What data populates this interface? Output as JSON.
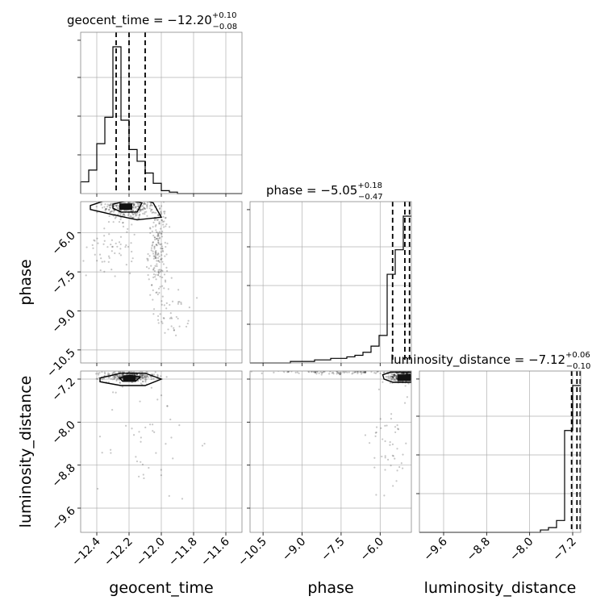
{
  "chart_data": {
    "type": "corner",
    "parameters": [
      "geocent_time",
      "phase",
      "luminosity_distance"
    ],
    "axis_labels": {
      "geocent_time": "geocent_time",
      "phase": "phase",
      "luminosity_distance": "luminosity_distance"
    },
    "ranges": {
      "geocent_time": [
        -12.5,
        -11.5
      ],
      "phase": [
        -11.0,
        -4.8
      ],
      "luminosity_distance": [
        -10.05,
        -7.05
      ]
    },
    "ticks": {
      "geocent_time": [
        -12.4,
        -12.2,
        -12.0,
        -11.8,
        -11.6
      ],
      "phase": [
        -10.5,
        -9.0,
        -7.5,
        -6.0
      ],
      "luminosity_distance": [
        -9.6,
        -8.8,
        -8.0,
        -7.2
      ]
    },
    "tick_labels": {
      "geocent_time": [
        "−12.4",
        "−12.2",
        "−12.0",
        "−11.8",
        "−11.6"
      ],
      "phase": [
        "−10.5",
        "−9.0",
        "−7.5",
        "−6.0"
      ],
      "luminosity_distance": [
        "−9.6",
        "−8.8",
        "−8.0",
        "−7.2"
      ]
    },
    "grid": true,
    "titles": [
      {
        "name": "geocent_time",
        "median": "−12.20",
        "plus": "+0.10",
        "minus": "−0.08"
      },
      {
        "name": "phase",
        "median": "−5.05",
        "plus": "+0.18",
        "minus": "−0.47"
      },
      {
        "name": "luminosity_distance",
        "median": "−7.12",
        "plus": "+0.06",
        "minus": "−0.10"
      }
    ],
    "quantiles": {
      "geocent_time": [
        -12.28,
        -12.2,
        -12.1
      ],
      "phase": [
        -5.52,
        -5.05,
        -4.87
      ],
      "luminosity_distance": [
        -7.22,
        -7.12,
        -7.06
      ]
    },
    "histograms": {
      "geocent_time": {
        "edges": [
          -12.5,
          -12.45,
          -12.4,
          -12.35,
          -12.3,
          -12.25,
          -12.2,
          -12.15,
          -12.1,
          -12.05,
          -12.0,
          -11.95,
          -11.9,
          -11.85,
          -11.8,
          -11.75,
          -11.7,
          -11.65,
          -11.6,
          -11.55,
          -11.5
        ],
        "counts": [
          0.08,
          0.16,
          0.34,
          0.52,
          1.0,
          0.5,
          0.3,
          0.22,
          0.14,
          0.07,
          0.02,
          0.01,
          0,
          0,
          0,
          0,
          0,
          0,
          0,
          0
        ]
      },
      "phase": {
        "edges": [
          -11.0,
          -10.69,
          -10.38,
          -10.07,
          -9.76,
          -9.45,
          -9.14,
          -8.83,
          -8.52,
          -8.21,
          -7.9,
          -7.59,
          -7.28,
          -6.97,
          -6.66,
          -6.35,
          -6.04,
          -5.73,
          -5.42,
          -5.11,
          -4.8
        ],
        "counts": [
          0,
          0,
          0,
          0,
          0,
          0.01,
          0.01,
          0.01,
          0.02,
          0.02,
          0.03,
          0.03,
          0.04,
          0.05,
          0.07,
          0.11,
          0.18,
          0.58,
          0.74,
          0.96
        ]
      },
      "luminosity_distance": {
        "edges": [
          -10.05,
          -9.9,
          -9.75,
          -9.6,
          -9.45,
          -9.3,
          -9.15,
          -9.0,
          -8.85,
          -8.7,
          -8.55,
          -8.4,
          -8.25,
          -8.1,
          -7.95,
          -7.8,
          -7.65,
          -7.5,
          -7.35,
          -7.2,
          -7.05
        ],
        "counts": [
          0,
          0,
          0,
          0,
          0,
          0,
          0,
          0,
          0,
          0,
          0,
          0,
          0,
          0,
          0,
          0.01,
          0.02,
          0.05,
          0.43,
          0.62
        ]
      }
    },
    "scatter_clusters": [
      {
        "px": "geocent_time",
        "py": "phase",
        "cx": -12.2,
        "cy": -5.0,
        "sx": 0.08,
        "sy": 0.25,
        "n": 320
      },
      {
        "px": "geocent_time",
        "py": "phase",
        "cx": -12.02,
        "cy": -6.6,
        "sx": 0.03,
        "sy": 1.0,
        "n": 200
      },
      {
        "px": "geocent_time",
        "py": "phase",
        "cx": -11.93,
        "cy": -9.1,
        "sx": 0.05,
        "sy": 0.45,
        "n": 40
      },
      {
        "px": "geocent_time",
        "py": "phase",
        "cx": -12.3,
        "cy": -6.5,
        "sx": 0.08,
        "sy": 0.6,
        "n": 60
      },
      {
        "px": "geocent_time",
        "py": "luminosity_distance",
        "cx": -12.2,
        "cy": -7.15,
        "sx": 0.08,
        "sy": 0.05,
        "n": 320
      },
      {
        "px": "geocent_time",
        "py": "luminosity_distance",
        "cx": -12.1,
        "cy": -8.3,
        "sx": 0.16,
        "sy": 0.6,
        "n": 50
      },
      {
        "px": "phase",
        "py": "luminosity_distance",
        "cx": -5.1,
        "cy": -7.15,
        "sx": 0.25,
        "sy": 0.05,
        "n": 320
      },
      {
        "px": "phase",
        "py": "luminosity_distance",
        "cx": -7.6,
        "cy": -7.07,
        "sx": 1.5,
        "sy": 0.02,
        "n": 120
      },
      {
        "px": "phase",
        "py": "luminosity_distance",
        "cx": -5.6,
        "cy": -8.3,
        "sx": 0.4,
        "sy": 0.6,
        "n": 50
      }
    ],
    "contours_2d": [
      {
        "px": "geocent_time",
        "py": "phase",
        "levels": [
          [
            [
              -12.44,
              -4.95
            ],
            [
              -12.32,
              -4.7
            ],
            [
              -12.15,
              -4.65
            ],
            [
              -12.05,
              -4.85
            ],
            [
              -12.0,
              -5.4
            ],
            [
              -12.15,
              -5.5
            ],
            [
              -12.3,
              -5.3
            ],
            [
              -12.44,
              -5.1
            ]
          ],
          [
            [
              -12.3,
              -4.9
            ],
            [
              -12.2,
              -4.75
            ],
            [
              -12.12,
              -4.85
            ],
            [
              -12.15,
              -5.2
            ],
            [
              -12.25,
              -5.2
            ],
            [
              -12.3,
              -5.05
            ]
          ]
        ]
      },
      {
        "px": "geocent_time",
        "py": "luminosity_distance",
        "levels": [
          [
            [
              -12.38,
              -7.18
            ],
            [
              -12.25,
              -7.09
            ],
            [
              -12.1,
              -7.09
            ],
            [
              -12.0,
              -7.2
            ],
            [
              -12.1,
              -7.32
            ],
            [
              -12.25,
              -7.32
            ],
            [
              -12.38,
              -7.25
            ]
          ],
          [
            [
              -12.26,
              -7.18
            ],
            [
              -12.2,
              -7.13
            ],
            [
              -12.13,
              -7.16
            ],
            [
              -12.16,
              -7.24
            ],
            [
              -12.24,
              -7.24
            ]
          ]
        ]
      },
      {
        "px": "phase",
        "py": "luminosity_distance",
        "levels": [
          [
            [
              -5.9,
              -7.12
            ],
            [
              -5.6,
              -7.07
            ],
            [
              -4.8,
              -7.07
            ],
            [
              -4.8,
              -7.26
            ],
            [
              -5.5,
              -7.26
            ],
            [
              -5.85,
              -7.2
            ]
          ],
          [
            [
              -5.3,
              -7.14
            ],
            [
              -4.85,
              -7.12
            ],
            [
              -4.85,
              -7.22
            ],
            [
              -5.3,
              -7.22
            ]
          ]
        ]
      }
    ]
  }
}
